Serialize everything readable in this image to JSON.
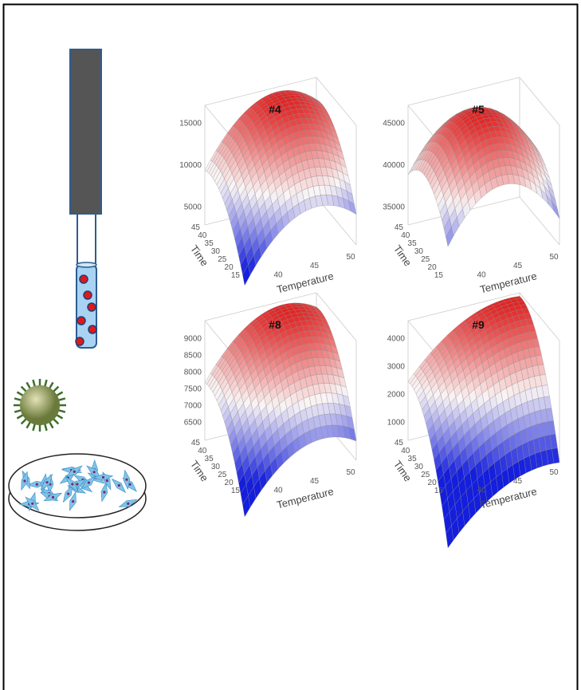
{
  "panels": [
    {
      "title": "#4",
      "z_ticks": [
        15000,
        10000,
        5000
      ],
      "time_ticks": [
        45,
        40,
        35,
        30,
        25,
        20,
        15
      ],
      "temperature_ticks": [
        40,
        45,
        50
      ],
      "time_label": "Time",
      "temperature_label": "Temperature"
    },
    {
      "title": "#5",
      "z_ticks": [
        45000,
        40000,
        35000
      ],
      "time_ticks": [
        45,
        40,
        35,
        30,
        25,
        20,
        15
      ],
      "temperature_ticks": [
        40,
        45,
        50
      ],
      "time_label": "Time",
      "temperature_label": "Temperature"
    },
    {
      "title": "#8",
      "z_ticks": [
        9000,
        8500,
        8000,
        7500,
        7000,
        6500
      ],
      "time_ticks": [
        45,
        40,
        35,
        30,
        25,
        20,
        15
      ],
      "temperature_ticks": [
        40,
        45,
        50
      ],
      "time_label": "Time",
      "temperature_label": "Temperature"
    },
    {
      "title": "#9",
      "z_ticks": [
        4000,
        3000,
        2000,
        1000
      ],
      "time_ticks": [
        45,
        40,
        35,
        30,
        25,
        20,
        15
      ],
      "temperature_ticks": [
        40,
        45,
        50
      ],
      "time_label": "Time",
      "temperature_label": "Temperature"
    }
  ]
}
